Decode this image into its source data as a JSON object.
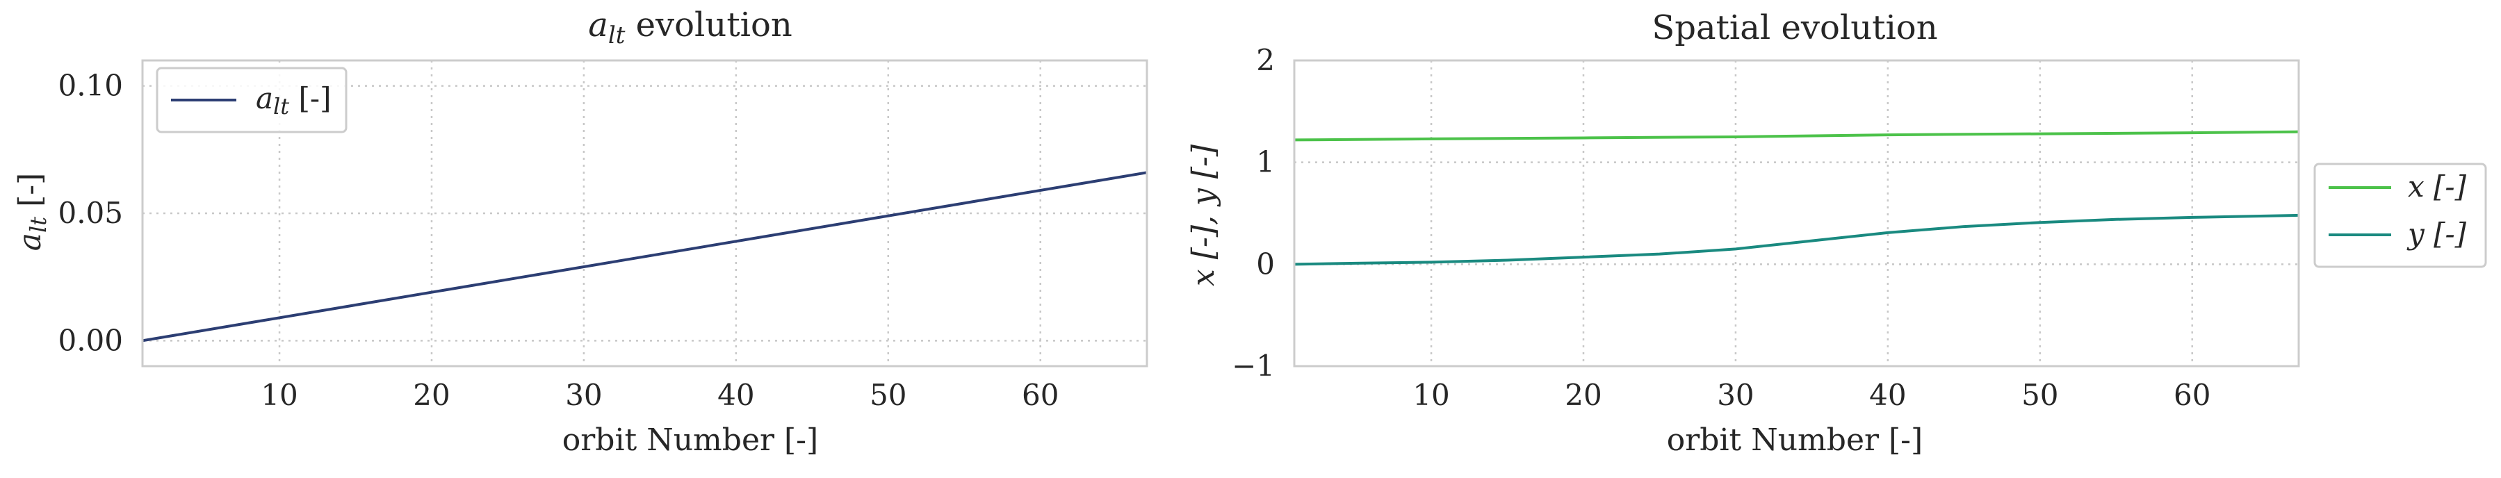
{
  "chart_data": [
    {
      "type": "line",
      "title": "a_lt evolution",
      "title_parts": {
        "var": "a",
        "sub": "lt",
        "rest": " evolution"
      },
      "xlabel": "orbit Number [-]",
      "ylabel": "a_lt [-]",
      "ylabel_parts": {
        "var": "a",
        "sub": "lt",
        "rest": " [-]"
      },
      "xlim": [
        1,
        67
      ],
      "ylim": [
        -0.01,
        0.11
      ],
      "xticks": [
        10,
        20,
        30,
        40,
        50,
        60
      ],
      "yticks": [
        0.0,
        0.05,
        0.1
      ],
      "ytick_labels": [
        "0.00",
        "0.05",
        "0.10"
      ],
      "grid": true,
      "legend_position": "upper-left",
      "series": [
        {
          "name": "a_lt [-]",
          "name_parts": {
            "var": "a",
            "sub": "lt",
            "rest": " [-]"
          },
          "color": "#2c3e73",
          "x": [
            1,
            67
          ],
          "y": [
            0.0,
            0.066
          ]
        }
      ]
    },
    {
      "type": "line",
      "title": "Spatial evolution",
      "xlabel": "orbit Number [-]",
      "ylabel": "x [-], y [-]",
      "xlim": [
        1,
        67
      ],
      "ylim": [
        -1,
        2
      ],
      "xticks": [
        10,
        20,
        30,
        40,
        50,
        60
      ],
      "yticks": [
        -1,
        0,
        1,
        2
      ],
      "ytick_labels": [
        "−1",
        "0",
        "1",
        "2"
      ],
      "grid": true,
      "legend_position": "outside-right",
      "series": [
        {
          "name": "x [-]",
          "color": "#4cc24a",
          "x": [
            1,
            10,
            20,
            30,
            40,
            50,
            60,
            67
          ],
          "y": [
            1.22,
            1.23,
            1.24,
            1.25,
            1.27,
            1.28,
            1.29,
            1.3
          ]
        },
        {
          "name": "y [-]",
          "color": "#1a8a80",
          "x": [
            1,
            5,
            10,
            15,
            20,
            25,
            30,
            35,
            40,
            45,
            50,
            55,
            60,
            67
          ],
          "y": [
            0.0,
            0.01,
            0.02,
            0.04,
            0.07,
            0.1,
            0.15,
            0.23,
            0.31,
            0.37,
            0.41,
            0.44,
            0.46,
            0.48
          ]
        }
      ]
    }
  ]
}
